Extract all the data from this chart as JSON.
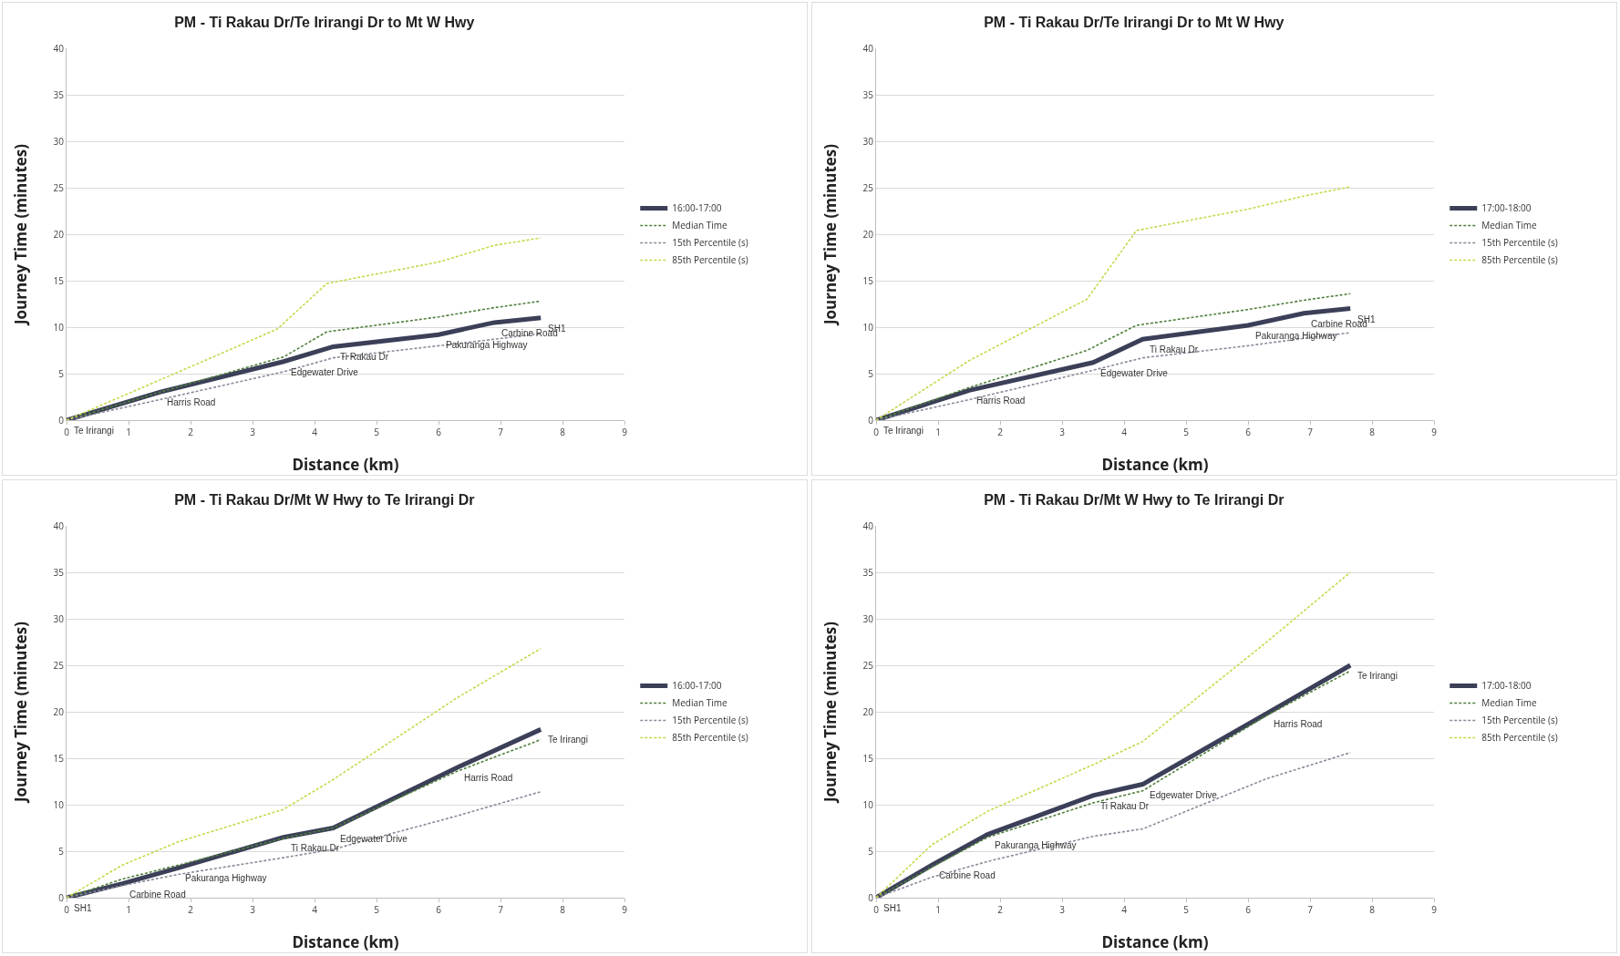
{
  "chart_data": [
    {
      "type": "line",
      "title": "PM - Ti Rakau Dr/Te Irirangi Dr to Mt W Hwy",
      "xlabel": "Distance (km)",
      "ylabel": "Journey Time (minutes)",
      "xlim": [
        0,
        9
      ],
      "xticks": [
        0,
        1,
        2,
        3,
        4,
        5,
        6,
        7,
        8,
        9
      ],
      "ylim": [
        0,
        40
      ],
      "yticks": [
        0,
        5,
        10,
        15,
        20,
        25,
        30,
        35,
        40
      ],
      "grid": "y",
      "legend": "right",
      "series": [
        {
          "name": "16:00-17:00",
          "color": "#3b3f58",
          "line_style": "solid",
          "x": [
            0,
            1.5,
            3.5,
            4.3,
            6,
            6.9,
            7.65
          ],
          "values": [
            0,
            3,
            6.3,
            7.9,
            9.2,
            10.5,
            11
          ]
        },
        {
          "name": "Median Time",
          "color": "#4f7f3a",
          "line_style": "dashed",
          "x": [
            0,
            1.5,
            3.5,
            4.2,
            6,
            6.9,
            7.65
          ],
          "values": [
            0,
            3,
            6.8,
            9.5,
            11.1,
            12.1,
            12.8
          ]
        },
        {
          "name": "15th Percentile (s)",
          "color": "#8a8a9a",
          "line_style": "dashed",
          "x": [
            0,
            1.5,
            3.5,
            4.3,
            6,
            6.9,
            7.65
          ],
          "values": [
            0,
            2.2,
            5.2,
            6.7,
            8,
            8.7,
            9.3
          ]
        },
        {
          "name": "85th Percentile (s)",
          "color": "#c8d84a",
          "line_style": "dashed",
          "x": [
            0,
            1.5,
            3.4,
            4.2,
            6,
            6.9,
            7.65
          ],
          "values": [
            0,
            4.3,
            9.8,
            14.7,
            17,
            18.8,
            19.6
          ]
        }
      ],
      "annotations": [
        {
          "text": "Te Irirangi",
          "x": 0,
          "y": 0
        },
        {
          "text": "Harris Road",
          "x": 1.5,
          "y": 3
        },
        {
          "text": "Edgewater Drive",
          "x": 3.5,
          "y": 6.3
        },
        {
          "text": "Ti Rakau Dr",
          "x": 4.3,
          "y": 7.9
        },
        {
          "text": "Pakuranga Highway",
          "x": 6,
          "y": 9.2
        },
        {
          "text": "Carbine Road",
          "x": 6.9,
          "y": 10.5
        },
        {
          "text": "SH1",
          "x": 7.65,
          "y": 11
        }
      ]
    },
    {
      "type": "line",
      "title": "PM - Ti Rakau Dr/Te Irirangi Dr to Mt W Hwy",
      "xlabel": "Distance (km)",
      "ylabel": "Journey Time (minutes)",
      "xlim": [
        0,
        9
      ],
      "xticks": [
        0,
        1,
        2,
        3,
        4,
        5,
        6,
        7,
        8,
        9
      ],
      "ylim": [
        0,
        40
      ],
      "yticks": [
        0,
        5,
        10,
        15,
        20,
        25,
        30,
        35,
        40
      ],
      "grid": "y",
      "legend": "right",
      "series": [
        {
          "name": "17:00-18:00",
          "color": "#3b3f58",
          "line_style": "solid",
          "x": [
            0,
            1.5,
            3.5,
            4.3,
            6,
            6.9,
            7.65
          ],
          "values": [
            0,
            3.2,
            6.2,
            8.7,
            10.2,
            11.5,
            12
          ]
        },
        {
          "name": "Median Time",
          "color": "#4f7f3a",
          "line_style": "dashed",
          "x": [
            0,
            1.5,
            3.4,
            4.2,
            6,
            6.9,
            7.65
          ],
          "values": [
            0,
            3.5,
            7.5,
            10.2,
            11.9,
            12.9,
            13.6
          ]
        },
        {
          "name": "15th Percentile (s)",
          "color": "#8a8a9a",
          "line_style": "dashed",
          "x": [
            0,
            1.5,
            3.4,
            4.3,
            6,
            6.9,
            7.65
          ],
          "values": [
            0,
            2.2,
            5.2,
            6.7,
            8,
            8.8,
            9.4
          ]
        },
        {
          "name": "85th Percentile (s)",
          "color": "#c8d84a",
          "line_style": "dashed",
          "x": [
            0,
            1.5,
            3.4,
            4.2,
            6,
            6.9,
            7.65
          ],
          "values": [
            0,
            6.4,
            13,
            20.4,
            22.7,
            24.1,
            25.1
          ]
        }
      ],
      "annotations": [
        {
          "text": "Te Irirangi",
          "x": 0,
          "y": 0
        },
        {
          "text": "Harris Road",
          "x": 1.5,
          "y": 3.2
        },
        {
          "text": "Edgewater Drive",
          "x": 3.5,
          "y": 6.2
        },
        {
          "text": "Ti Rakau Dr",
          "x": 4.3,
          "y": 8.7
        },
        {
          "text": "Pakuranga Highway",
          "x": 6,
          "y": 10.2
        },
        {
          "text": "Carbine Road",
          "x": 6.9,
          "y": 11.5
        },
        {
          "text": "SH1",
          "x": 7.65,
          "y": 12
        }
      ]
    },
    {
      "type": "line",
      "title": "PM - Ti Rakau Dr/Mt W Hwy to Te Irirangi Dr",
      "xlabel": "Distance (km)",
      "ylabel": "Journey Time (minutes)",
      "xlim": [
        0,
        9
      ],
      "xticks": [
        0,
        1,
        2,
        3,
        4,
        5,
        6,
        7,
        8,
        9
      ],
      "ylim": [
        0,
        40
      ],
      "yticks": [
        0,
        5,
        10,
        15,
        20,
        25,
        30,
        35,
        40
      ],
      "grid": "y",
      "legend": "right",
      "series": [
        {
          "name": "16:00-17:00",
          "color": "#3b3f58",
          "line_style": "solid",
          "x": [
            0,
            0.9,
            1.8,
            3.5,
            4.3,
            6.3,
            7.65
          ],
          "values": [
            0,
            1.5,
            3.2,
            6.5,
            7.5,
            14,
            18.1
          ]
        },
        {
          "name": "Median Time",
          "color": "#4f7f3a",
          "line_style": "dashed",
          "x": [
            0,
            0.9,
            1.8,
            3.5,
            4.3,
            6.3,
            7.65
          ],
          "values": [
            0,
            2,
            3.5,
            6.4,
            7.5,
            13.6,
            17
          ]
        },
        {
          "name": "15th Percentile (s)",
          "color": "#8a8a9a",
          "line_style": "dashed",
          "x": [
            0,
            0.9,
            1.8,
            3.5,
            4.3,
            6.3,
            7.65
          ],
          "values": [
            0,
            1.3,
            2.5,
            4.3,
            5.2,
            8.8,
            11.4
          ]
        },
        {
          "name": "85th Percentile (s)",
          "color": "#c8d84a",
          "line_style": "dashed",
          "x": [
            0,
            0.9,
            1.8,
            3.5,
            4.3,
            6.3,
            7.65
          ],
          "values": [
            0,
            3.5,
            6,
            9.5,
            12.7,
            21.5,
            26.8
          ]
        }
      ],
      "annotations": [
        {
          "text": "SH1",
          "x": 0,
          "y": 0
        },
        {
          "text": "Carbine Road",
          "x": 0.9,
          "y": 1.5
        },
        {
          "text": "Pakuranga Highway",
          "x": 1.8,
          "y": 3.2
        },
        {
          "text": "Ti Rakau Dr",
          "x": 3.5,
          "y": 6.5
        },
        {
          "text": "Edgewater Drive",
          "x": 4.3,
          "y": 7.5
        },
        {
          "text": "Harris Road",
          "x": 6.3,
          "y": 14
        },
        {
          "text": "Te Irirangi",
          "x": 7.65,
          "y": 18.1
        }
      ]
    },
    {
      "type": "line",
      "title": "PM - Ti Rakau Dr/Mt W Hwy to Te Irirangi Dr",
      "xlabel": "Distance (km)",
      "ylabel": "Journey Time (minutes)",
      "xlim": [
        0,
        9
      ],
      "xticks": [
        0,
        1,
        2,
        3,
        4,
        5,
        6,
        7,
        8,
        9
      ],
      "ylim": [
        0,
        40
      ],
      "yticks": [
        0,
        5,
        10,
        15,
        20,
        25,
        30,
        35,
        40
      ],
      "grid": "y",
      "legend": "right",
      "series": [
        {
          "name": "17:00-18:00",
          "color": "#3b3f58",
          "line_style": "solid",
          "x": [
            0,
            0.9,
            1.8,
            3.5,
            4.3,
            6.3,
            7.65
          ],
          "values": [
            0,
            3.5,
            6.8,
            11,
            12.2,
            19.8,
            25
          ]
        },
        {
          "name": "Median Time",
          "color": "#4f7f3a",
          "line_style": "dashed",
          "x": [
            0,
            0.9,
            1.8,
            3.5,
            4.3,
            6.3,
            7.65
          ],
          "values": [
            0,
            3.3,
            6.5,
            10.2,
            11.5,
            19.6,
            24.4
          ]
        },
        {
          "name": "15th Percentile (s)",
          "color": "#8a8a9a",
          "line_style": "dashed",
          "x": [
            0,
            0.9,
            1.8,
            3.5,
            4.3,
            6.3,
            7.65
          ],
          "values": [
            0,
            2.2,
            3.9,
            6.6,
            7.4,
            12.8,
            15.6
          ]
        },
        {
          "name": "85th Percentile (s)",
          "color": "#c8d84a",
          "line_style": "dashed",
          "x": [
            0,
            0.9,
            1.8,
            3.5,
            4.3,
            6.3,
            7.65
          ],
          "values": [
            0,
            5.7,
            9.3,
            14.3,
            16.8,
            27.5,
            35
          ]
        }
      ],
      "annotations": [
        {
          "text": "SH1",
          "x": 0,
          "y": 0
        },
        {
          "text": "Carbine Road",
          "x": 0.9,
          "y": 3.5
        },
        {
          "text": "Pakuranga Highway",
          "x": 1.8,
          "y": 6.8
        },
        {
          "text": "Ti Rakau Dr",
          "x": 3.5,
          "y": 11
        },
        {
          "text": "Edgewater Drive",
          "x": 4.3,
          "y": 12.2
        },
        {
          "text": "Harris Road",
          "x": 6.3,
          "y": 19.8
        },
        {
          "text": "Te Irirangi",
          "x": 7.65,
          "y": 25
        }
      ]
    }
  ]
}
